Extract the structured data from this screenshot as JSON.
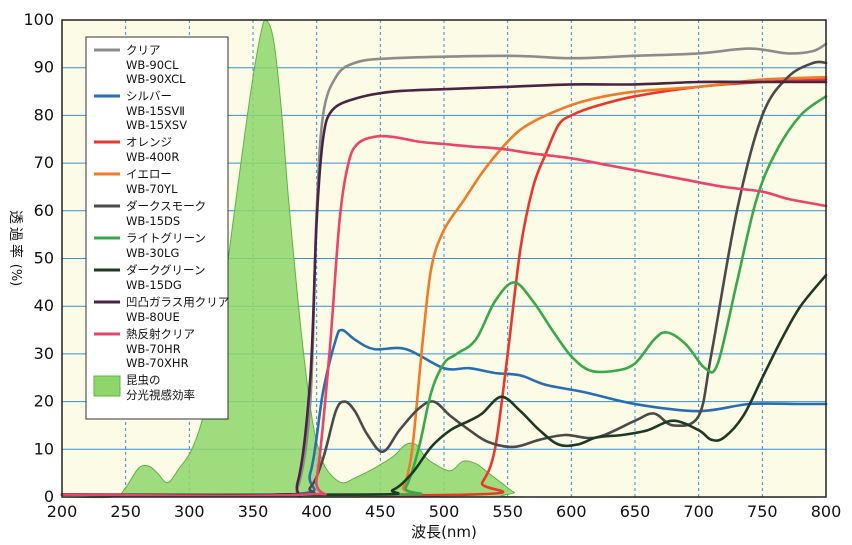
{
  "chart_data": {
    "type": "line",
    "title": "",
    "xlabel": "波長(nm)",
    "ylabel": "透過率 (%)",
    "xlim": [
      200,
      800
    ],
    "ylim": [
      0,
      100
    ],
    "x_ticks": [
      200,
      250,
      300,
      350,
      400,
      450,
      500,
      550,
      600,
      650,
      700,
      750,
      800
    ],
    "y_ticks": [
      0,
      10,
      20,
      30,
      40,
      50,
      60,
      70,
      80,
      90,
      100
    ],
    "grid": true,
    "legend_position": "top-left",
    "background_color": "#fcfbe6",
    "series": [
      {
        "name": "クリア",
        "products": [
          "WB-90CL",
          "WB-90XCL"
        ],
        "color": "#8c8c8c",
        "points": [
          [
            200,
            0.5
          ],
          [
            370,
            0.5
          ],
          [
            385,
            2
          ],
          [
            395,
            20
          ],
          [
            400,
            60
          ],
          [
            405,
            80
          ],
          [
            415,
            88
          ],
          [
            430,
            91
          ],
          [
            460,
            92
          ],
          [
            550,
            92.5
          ],
          [
            600,
            92
          ],
          [
            650,
            92.5
          ],
          [
            700,
            93
          ],
          [
            740,
            94
          ],
          [
            770,
            93
          ],
          [
            790,
            93.5
          ],
          [
            800,
            95
          ]
        ]
      },
      {
        "name": "シルバー",
        "products": [
          "WB-15SVⅡ",
          "WB-15XSV"
        ],
        "color": "#2a6db0",
        "points": [
          [
            200,
            0.5
          ],
          [
            380,
            0.5
          ],
          [
            395,
            5
          ],
          [
            405,
            22
          ],
          [
            415,
            33
          ],
          [
            420,
            35
          ],
          [
            430,
            33
          ],
          [
            445,
            31
          ],
          [
            470,
            31
          ],
          [
            500,
            27
          ],
          [
            520,
            27
          ],
          [
            540,
            26
          ],
          [
            560,
            25.5
          ],
          [
            580,
            23.5
          ],
          [
            610,
            22
          ],
          [
            650,
            19.5
          ],
          [
            700,
            18
          ],
          [
            740,
            19.5
          ],
          [
            780,
            19.5
          ],
          [
            800,
            19.5
          ]
        ]
      },
      {
        "name": "オレンジ",
        "products": [
          "WB-400R"
        ],
        "color": "#e8372c",
        "points": [
          [
            200,
            0.5
          ],
          [
            520,
            0.5
          ],
          [
            530,
            3
          ],
          [
            540,
            10
          ],
          [
            550,
            30
          ],
          [
            560,
            52
          ],
          [
            570,
            65
          ],
          [
            580,
            72
          ],
          [
            590,
            78
          ],
          [
            600,
            80
          ],
          [
            620,
            82
          ],
          [
            650,
            84
          ],
          [
            700,
            86
          ],
          [
            750,
            87
          ],
          [
            800,
            87.5
          ]
        ]
      },
      {
        "name": "イエロー",
        "products": [
          "WB-70YL"
        ],
        "color": "#ee7a2a",
        "points": [
          [
            200,
            0.5
          ],
          [
            460,
            0.5
          ],
          [
            468,
            2
          ],
          [
            475,
            10
          ],
          [
            483,
            32
          ],
          [
            490,
            48
          ],
          [
            500,
            56
          ],
          [
            515,
            62
          ],
          [
            530,
            68
          ],
          [
            545,
            73
          ],
          [
            560,
            77
          ],
          [
            580,
            80
          ],
          [
            610,
            83
          ],
          [
            650,
            85
          ],
          [
            700,
            86
          ],
          [
            750,
            87.5
          ],
          [
            800,
            88
          ]
        ]
      },
      {
        "name": "ダークスモーク",
        "products": [
          "WB-15DS"
        ],
        "color": "#4a4a4a",
        "points": [
          [
            200,
            0.5
          ],
          [
            380,
            0.5
          ],
          [
            395,
            2
          ],
          [
            405,
            8
          ],
          [
            415,
            18
          ],
          [
            422,
            20
          ],
          [
            430,
            18
          ],
          [
            440,
            13
          ],
          [
            452,
            9.5
          ],
          [
            465,
            14
          ],
          [
            480,
            18.5
          ],
          [
            492,
            20
          ],
          [
            505,
            17
          ],
          [
            520,
            14
          ],
          [
            535,
            11.5
          ],
          [
            555,
            10.5
          ],
          [
            575,
            12
          ],
          [
            595,
            13
          ],
          [
            620,
            12.5
          ],
          [
            650,
            16
          ],
          [
            665,
            17.5
          ],
          [
            680,
            15
          ],
          [
            700,
            17
          ],
          [
            710,
            30
          ],
          [
            730,
            60
          ],
          [
            750,
            80
          ],
          [
            770,
            88
          ],
          [
            790,
            91
          ],
          [
            800,
            91
          ]
        ]
      },
      {
        "name": "ライトグリーン",
        "products": [
          "WB-30LG"
        ],
        "color": "#3aa84a",
        "points": [
          [
            200,
            0.5
          ],
          [
            460,
            0.5
          ],
          [
            470,
            2
          ],
          [
            480,
            10
          ],
          [
            490,
            22
          ],
          [
            500,
            28
          ],
          [
            510,
            30
          ],
          [
            525,
            33
          ],
          [
            540,
            41
          ],
          [
            555,
            45
          ],
          [
            570,
            41
          ],
          [
            585,
            35
          ],
          [
            600,
            29.5
          ],
          [
            615,
            26.5
          ],
          [
            635,
            26.5
          ],
          [
            650,
            28
          ],
          [
            665,
            33
          ],
          [
            675,
            34.5
          ],
          [
            690,
            32
          ],
          [
            705,
            27
          ],
          [
            715,
            28
          ],
          [
            730,
            45
          ],
          [
            745,
            62
          ],
          [
            760,
            72
          ],
          [
            780,
            80
          ],
          [
            800,
            84
          ]
        ]
      },
      {
        "name": "ダークグリーン",
        "products": [
          "WB-15DG"
        ],
        "color": "#1e3a24",
        "points": [
          [
            200,
            0.5
          ],
          [
            440,
            0.5
          ],
          [
            460,
            1.5
          ],
          [
            475,
            5
          ],
          [
            490,
            10.5
          ],
          [
            505,
            14
          ],
          [
            520,
            16
          ],
          [
            530,
            17.5
          ],
          [
            545,
            21
          ],
          [
            560,
            18
          ],
          [
            575,
            14
          ],
          [
            590,
            11
          ],
          [
            605,
            11
          ],
          [
            620,
            12.5
          ],
          [
            640,
            13
          ],
          [
            660,
            14
          ],
          [
            680,
            16
          ],
          [
            700,
            14
          ],
          [
            710,
            12
          ],
          [
            720,
            12.5
          ],
          [
            735,
            17
          ],
          [
            750,
            25
          ],
          [
            765,
            33
          ],
          [
            780,
            40
          ],
          [
            800,
            46.5
          ]
        ]
      },
      {
        "name": "凹凸ガラス用クリア",
        "products": [
          "WB-80UE"
        ],
        "color": "#4a2444",
        "points": [
          [
            200,
            0.5
          ],
          [
            370,
            0.5
          ],
          [
            385,
            3
          ],
          [
            395,
            25
          ],
          [
            400,
            58
          ],
          [
            405,
            75
          ],
          [
            412,
            81
          ],
          [
            430,
            83.5
          ],
          [
            460,
            85
          ],
          [
            500,
            85.5
          ],
          [
            550,
            86
          ],
          [
            600,
            86.5
          ],
          [
            650,
            86.5
          ],
          [
            700,
            87
          ],
          [
            750,
            87
          ],
          [
            800,
            87
          ]
        ]
      },
      {
        "name": "熱反射クリア",
        "products": [
          "WB-70HR",
          "WB-70XHR"
        ],
        "color": "#e8456a",
        "points": [
          [
            200,
            0.5
          ],
          [
            390,
            0.5
          ],
          [
            400,
            4
          ],
          [
            410,
            30
          ],
          [
            418,
            58
          ],
          [
            425,
            70
          ],
          [
            432,
            74
          ],
          [
            445,
            75.5
          ],
          [
            460,
            75.5
          ],
          [
            480,
            74.5
          ],
          [
            500,
            74
          ],
          [
            520,
            73.5
          ],
          [
            545,
            73
          ],
          [
            570,
            72
          ],
          [
            600,
            71
          ],
          [
            630,
            69.5
          ],
          [
            660,
            68
          ],
          [
            690,
            66.5
          ],
          [
            720,
            65
          ],
          [
            750,
            64
          ],
          [
            770,
            62.5
          ],
          [
            790,
            61.5
          ],
          [
            800,
            61
          ]
        ]
      }
    ],
    "insect_sensitivity": {
      "name": "昆虫の分光視感効率",
      "color": "#8ed66a",
      "points": [
        [
          200,
          0
        ],
        [
          240,
          0
        ],
        [
          250,
          2
        ],
        [
          260,
          6
        ],
        [
          268,
          6.5
        ],
        [
          275,
          5
        ],
        [
          283,
          3
        ],
        [
          292,
          6
        ],
        [
          302,
          10
        ],
        [
          312,
          18
        ],
        [
          322,
          32
        ],
        [
          333,
          55
        ],
        [
          343,
          75
        ],
        [
          350,
          88
        ],
        [
          356,
          97
        ],
        [
          360,
          100
        ],
        [
          366,
          96
        ],
        [
          372,
          82
        ],
        [
          378,
          62
        ],
        [
          385,
          42
        ],
        [
          392,
          25
        ],
        [
          398,
          14
        ],
        [
          404,
          8
        ],
        [
          410,
          5
        ],
        [
          420,
          3
        ],
        [
          430,
          4
        ],
        [
          445,
          6
        ],
        [
          460,
          8.5
        ],
        [
          470,
          11
        ],
        [
          478,
          11
        ],
        [
          485,
          8.5
        ],
        [
          492,
          7
        ],
        [
          505,
          5.5
        ],
        [
          515,
          7.5
        ],
        [
          525,
          7
        ],
        [
          535,
          5
        ],
        [
          545,
          3
        ],
        [
          555,
          1
        ],
        [
          565,
          0
        ],
        [
          800,
          0
        ]
      ]
    }
  }
}
